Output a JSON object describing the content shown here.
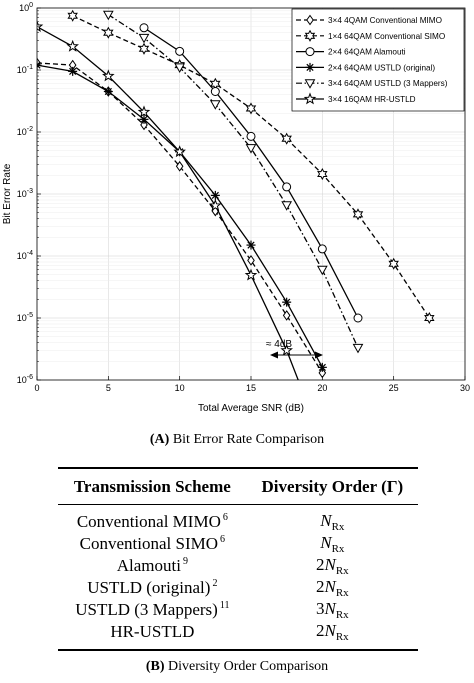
{
  "chart_data": {
    "type": "line",
    "xlabel": "Total Average SNR (dB)",
    "ylabel": "Bit Error Rate",
    "xlim": [
      0,
      30
    ],
    "ylim": [
      1e-06,
      1
    ],
    "yscale": "log",
    "xticks": [
      "0",
      "5",
      "10",
      "15",
      "20",
      "25",
      "30"
    ],
    "yticks": [
      "10^-6",
      "10^-5",
      "10^-4",
      "10^-3",
      "10^-2",
      "10^-1",
      "10^0"
    ],
    "grid": true,
    "legend_position": "top-right",
    "annotation": "≈ 4dB",
    "series": [
      {
        "name": "3×4 4QAM Conventional MIMO",
        "marker": "diamond",
        "dash": "dashed",
        "x": [
          0,
          2.5,
          5,
          7.5,
          10,
          12.5,
          15,
          17.5,
          20
        ],
        "y": [
          0.13,
          0.12,
          0.045,
          0.013,
          0.0028,
          0.00053,
          8.5e-05,
          1.1e-05,
          1.3e-06
        ]
      },
      {
        "name": "1×4 64QAM Conventional SIMO",
        "marker": "hexagram",
        "dash": "dashed",
        "x": [
          2.5,
          5,
          7.5,
          10,
          12.5,
          15,
          17.5,
          20,
          22.5,
          25,
          27.5
        ],
        "y": [
          0.75,
          0.4,
          0.22,
          0.12,
          0.06,
          0.024,
          0.0078,
          0.0021,
          0.00047,
          7.5e-05,
          1e-05
        ]
      },
      {
        "name": "2×4 64QAM Alamouti",
        "marker": "circle",
        "dash": "solid",
        "x": [
          7.5,
          10,
          12.5,
          15,
          17.5,
          20,
          22.5
        ],
        "y": [
          0.48,
          0.2,
          0.045,
          0.0085,
          0.0013,
          0.00013,
          1e-05
        ]
      },
      {
        "name": "2×4 64QAM USTLD (original)",
        "marker": "asterisk",
        "dash": "solid",
        "x": [
          0,
          2.5,
          5,
          7.5,
          10,
          12.5,
          15,
          17.5,
          20
        ],
        "y": [
          0.12,
          0.095,
          0.045,
          0.016,
          0.0048,
          0.00095,
          0.00015,
          1.8e-05,
          1.6e-06
        ]
      },
      {
        "name": "3×4 64QAM USTLD (3 Mappers)",
        "marker": "triangle-down",
        "dash": "dashdot",
        "x": [
          5,
          7.5,
          10,
          12.5,
          15,
          17.5,
          20,
          22.5
        ],
        "y": [
          0.78,
          0.33,
          0.11,
          0.028,
          0.0055,
          0.00066,
          6e-05,
          3.3e-06
        ]
      },
      {
        "name": "3×4 16QAM HR-USTLD",
        "marker": "star",
        "dash": "solid",
        "x": [
          0,
          2.5,
          5,
          7.5,
          10,
          12.5,
          15,
          17.5,
          20
        ],
        "y": [
          0.5,
          0.24,
          0.08,
          0.021,
          0.0048,
          0.00065,
          4.9e-05,
          3e-06,
          1e-07
        ]
      }
    ]
  },
  "captions": {
    "a_label": "(A)",
    "a_text": "Bit Error Rate Comparison",
    "b_label": "(B)",
    "b_text": "Diversity Order Comparison"
  },
  "table": {
    "header_scheme": "Transmission Scheme",
    "header_order": "Diversity Order (Γ)",
    "rows": [
      {
        "scheme": "Conventional MIMO",
        "ref": "6",
        "coef": "",
        "sym": "N",
        "sub": "Rx"
      },
      {
        "scheme": "Conventional SIMO",
        "ref": "6",
        "coef": "",
        "sym": "N",
        "sub": "Rx"
      },
      {
        "scheme": "Alamouti",
        "ref": "9",
        "coef": "2",
        "sym": "N",
        "sub": "Rx"
      },
      {
        "scheme": "USTLD (original)",
        "ref": "2",
        "coef": "2",
        "sym": "N",
        "sub": "Rx"
      },
      {
        "scheme": "USTLD (3 Mappers)",
        "ref": "11",
        "coef": "3",
        "sym": "N",
        "sub": "Rx"
      },
      {
        "scheme": "HR-USTLD",
        "ref": "",
        "coef": "2",
        "sym": "N",
        "sub": "Rx"
      }
    ]
  }
}
